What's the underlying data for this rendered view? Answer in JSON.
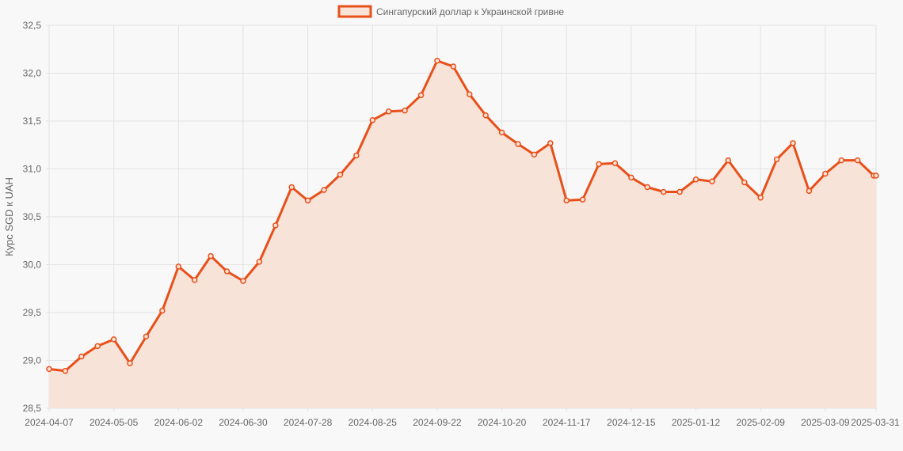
{
  "chart_data": {
    "type": "line",
    "legend": "Сингапурский доллар к Украинской гривне",
    "legend_position": "top",
    "ylabel": "Курс SGD к UAH",
    "xlabel": "",
    "ylim": [
      28.5,
      32.5
    ],
    "y_ticks": [
      "28,5",
      "29,0",
      "29,5",
      "30,0",
      "30,5",
      "31,0",
      "31,5",
      "32,0",
      "32,5"
    ],
    "x_ticks": [
      "2024-04-07",
      "2024-05-05",
      "2024-06-02",
      "2024-06-30",
      "2024-07-28",
      "2024-08-25",
      "2024-09-22",
      "2024-10-20",
      "2024-11-17",
      "2024-12-15",
      "2025-01-12",
      "2025-02-09",
      "2025-03-09",
      "2025-03-31"
    ],
    "grid": true,
    "area_fill": true,
    "colors": {
      "line": "#e8501a",
      "fill": "#f8e3d9"
    },
    "series": [
      {
        "name": "Сингапурский доллар к Украинской гривне",
        "x": [
          "2024-04-07",
          "2024-04-14",
          "2024-04-21",
          "2024-04-28",
          "2024-05-05",
          "2024-05-12",
          "2024-05-19",
          "2024-05-26",
          "2024-06-02",
          "2024-06-09",
          "2024-06-16",
          "2024-06-23",
          "2024-06-30",
          "2024-07-07",
          "2024-07-14",
          "2024-07-21",
          "2024-07-28",
          "2024-08-04",
          "2024-08-11",
          "2024-08-18",
          "2024-08-25",
          "2024-09-01",
          "2024-09-08",
          "2024-09-15",
          "2024-09-22",
          "2024-09-29",
          "2024-10-06",
          "2024-10-13",
          "2024-10-20",
          "2024-10-27",
          "2024-11-03",
          "2024-11-10",
          "2024-11-17",
          "2024-11-24",
          "2024-12-01",
          "2024-12-08",
          "2024-12-15",
          "2024-12-22",
          "2024-12-29",
          "2025-01-05",
          "2025-01-12",
          "2025-01-19",
          "2025-01-26",
          "2025-02-02",
          "2025-02-09",
          "2025-02-16",
          "2025-02-23",
          "2025-03-02",
          "2025-03-09",
          "2025-03-16",
          "2025-03-23",
          "2025-03-30",
          "2025-03-31"
        ],
        "values": [
          28.91,
          28.89,
          29.04,
          29.15,
          29.22,
          28.97,
          29.25,
          29.52,
          29.98,
          29.84,
          30.09,
          29.93,
          29.83,
          30.03,
          30.41,
          30.81,
          30.67,
          30.78,
          30.94,
          31.14,
          31.51,
          31.6,
          31.61,
          31.77,
          32.13,
          32.07,
          31.78,
          31.56,
          31.38,
          31.26,
          31.15,
          31.27,
          30.67,
          30.68,
          31.05,
          31.06,
          30.91,
          30.81,
          30.76,
          30.76,
          30.89,
          30.87,
          31.09,
          30.86,
          30.7,
          31.1,
          31.27,
          30.77,
          30.95,
          31.09,
          31.09,
          30.93,
          30.93
        ]
      }
    ]
  }
}
